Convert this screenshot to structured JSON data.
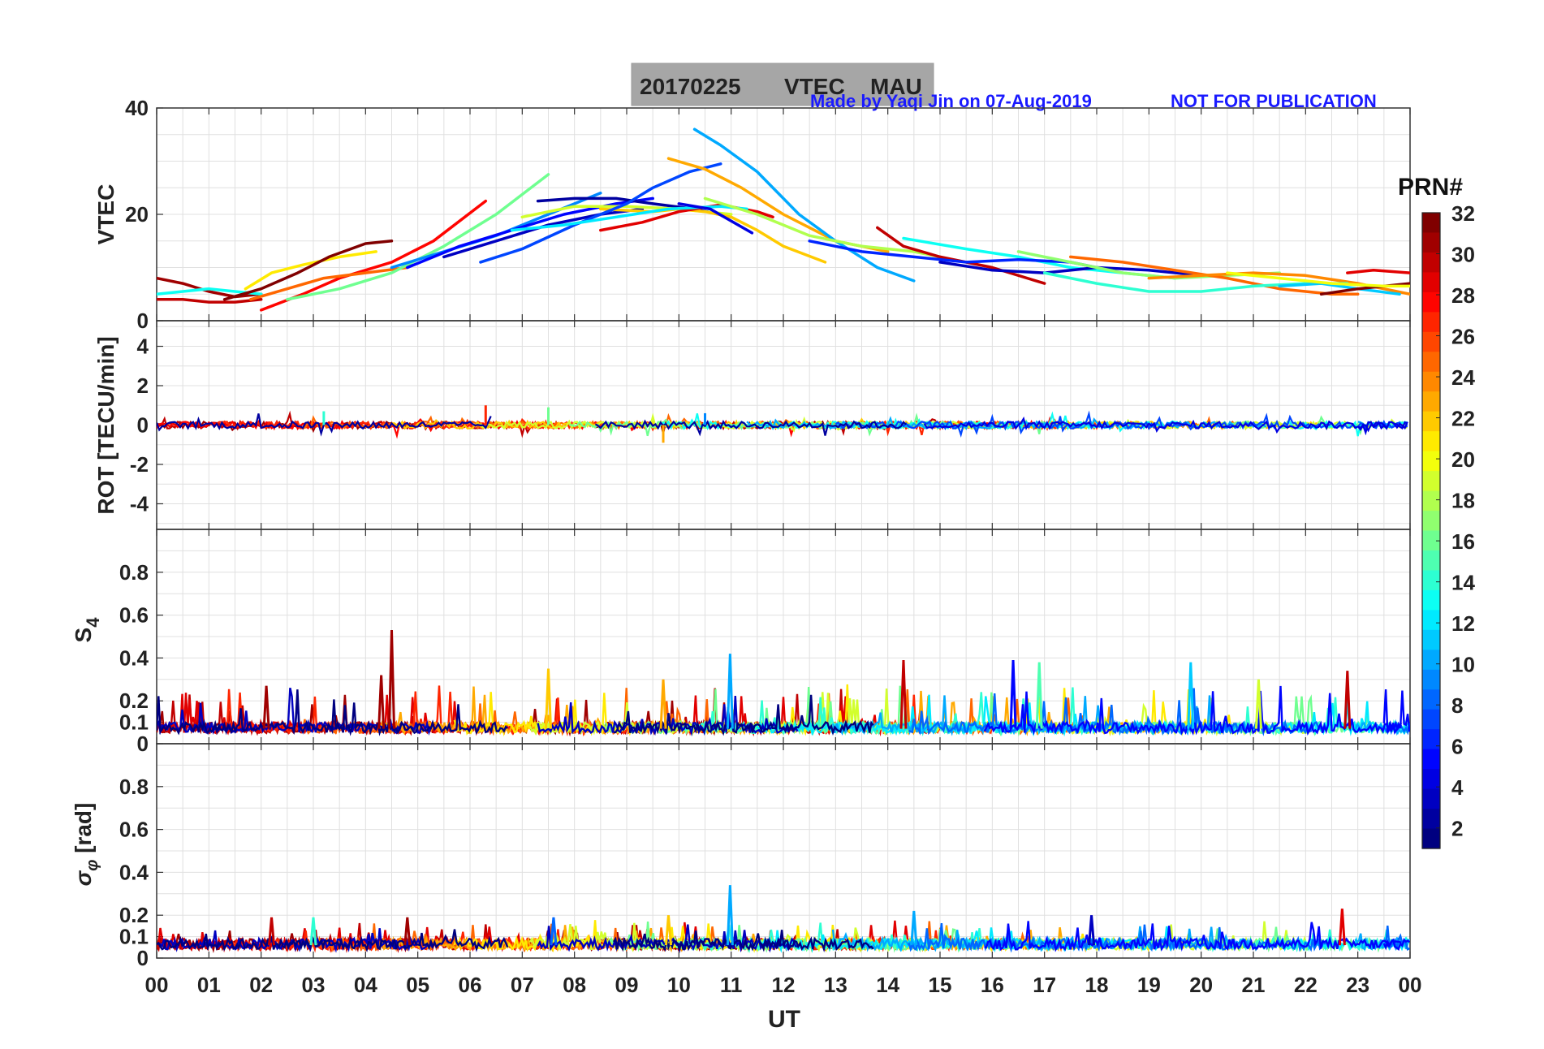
{
  "header": {
    "title_date": "20170225",
    "title_kind": "VTEC",
    "title_station": "MAU",
    "credit": "Made by Yaqi Jin on 07-Aug-2019",
    "notice": "NOT FOR PUBLICATION"
  },
  "colorbar": {
    "title": "PRN#",
    "ticks": [
      "32",
      "30",
      "28",
      "26",
      "24",
      "22",
      "20",
      "18",
      "16",
      "14",
      "12",
      "10",
      "8",
      "6",
      "4",
      "2"
    ],
    "colormap": "jet",
    "range": [
      1,
      32
    ]
  },
  "xaxis": {
    "label": "UT",
    "ticks": [
      "00",
      "01",
      "02",
      "03",
      "04",
      "05",
      "06",
      "07",
      "08",
      "09",
      "10",
      "11",
      "12",
      "13",
      "14",
      "15",
      "16",
      "17",
      "18",
      "19",
      "20",
      "21",
      "22",
      "23",
      "00"
    ]
  },
  "chart_data": [
    {
      "type": "line",
      "title": "20170225 VTEC MAU",
      "ylabel": "VTEC",
      "xlabel": "UT",
      "xlim": [
        0,
        24
      ],
      "ylim": [
        0,
        40
      ],
      "yticks": [
        "0",
        "20",
        "40"
      ],
      "ytick_values": [
        0,
        20,
        40
      ],
      "series": [
        {
          "prn": 31,
          "x": [
            0.0,
            0.5,
            1.0,
            1.5,
            2.0
          ],
          "y": [
            8,
            7,
            5.5,
            4.5,
            5
          ]
        },
        {
          "prn": 30,
          "x": [
            0.0,
            0.5,
            1.0,
            1.5,
            2.0
          ],
          "y": [
            4,
            4,
            3.5,
            3.5,
            4
          ]
        },
        {
          "prn": 13,
          "x": [
            0.0,
            0.5,
            1.0,
            1.5,
            2.0
          ],
          "y": [
            5,
            5.5,
            6,
            5.5,
            5
          ]
        },
        {
          "prn": 21,
          "x": [
            1.7,
            2.2,
            2.8,
            3.5,
            4.2
          ],
          "y": [
            6,
            9,
            10.5,
            12,
            13
          ]
        },
        {
          "prn": 32,
          "x": [
            1.3,
            2.0,
            2.7,
            3.3,
            4.0,
            4.5
          ],
          "y": [
            4,
            6,
            9,
            12,
            14.5,
            15
          ]
        },
        {
          "prn": 28,
          "x": [
            2.0,
            2.8,
            3.5,
            4.5,
            5.3,
            6.3
          ],
          "y": [
            2,
            5,
            8,
            11,
            15,
            22.5
          ]
        },
        {
          "prn": 25,
          "x": [
            1.8,
            2.5,
            3.2,
            4.0,
            4.8
          ],
          "y": [
            4,
            6,
            8,
            9,
            10
          ]
        },
        {
          "prn": 16,
          "x": [
            2.5,
            3.5,
            4.5,
            5.5,
            6.5,
            7.5
          ],
          "y": [
            4,
            6,
            9,
            14,
            20,
            27.5
          ]
        },
        {
          "prn": 9,
          "x": [
            4.5,
            5.5,
            6.5,
            7.5,
            8.5
          ],
          "y": [
            10,
            13,
            16,
            20,
            24
          ]
        },
        {
          "prn": 5,
          "x": [
            4.8,
            5.8,
            6.8,
            7.8,
            8.8,
            9.5
          ],
          "y": [
            10,
            14,
            17,
            20,
            22,
            23
          ]
        },
        {
          "prn": 3,
          "x": [
            5.5,
            6.5,
            7.5,
            8.5,
            9.3
          ],
          "y": [
            12,
            15,
            18,
            20,
            21
          ]
        },
        {
          "prn": 2,
          "x": [
            7.3,
            8.0,
            8.8,
            9.5,
            10.3,
            11.0
          ],
          "y": [
            22.5,
            23,
            23,
            22,
            21,
            19.5
          ]
        },
        {
          "prn": 19,
          "x": [
            7.0,
            8.0,
            9.0,
            10.0,
            11.0
          ],
          "y": [
            19.5,
            21.5,
            21.5,
            21,
            20
          ]
        },
        {
          "prn": 22,
          "x": [
            8.5,
            9.5,
            10.0,
            10.5,
            11.0,
            11.5,
            12.0,
            12.8
          ],
          "y": [
            21,
            20.5,
            21,
            20.5,
            19.5,
            17,
            14,
            11
          ]
        },
        {
          "prn": 7,
          "x": [
            6.2,
            7.0,
            8.0,
            9.0,
            9.5,
            10.2,
            10.8
          ],
          "y": [
            11,
            13.5,
            18,
            22,
            25,
            28,
            29.5
          ]
        },
        {
          "prn": 29,
          "x": [
            8.5,
            9.3,
            10.0,
            10.8,
            11.5,
            11.8
          ],
          "y": [
            17,
            18.5,
            20.5,
            21.8,
            20.5,
            19.5
          ]
        },
        {
          "prn": 12,
          "x": [
            6.8,
            7.8,
            8.8,
            9.8,
            10.8,
            11.3
          ],
          "y": [
            17,
            18,
            19.5,
            21,
            21.5,
            21
          ]
        },
        {
          "prn": 23,
          "x": [
            9.8,
            10.5,
            11.2,
            12.0,
            13.0,
            14.0
          ],
          "y": [
            30.5,
            28.5,
            25,
            20,
            15,
            13
          ]
        },
        {
          "prn": 10,
          "x": [
            10.3,
            10.8,
            11.5,
            12.3,
            13.0,
            13.8,
            14.5
          ],
          "y": [
            36,
            33,
            28,
            20,
            15,
            10,
            7.5
          ]
        },
        {
          "prn": 4,
          "x": [
            10.0,
            10.6,
            11.4
          ],
          "y": [
            22,
            21,
            16.5
          ]
        },
        {
          "prn": 18,
          "x": [
            10.5,
            11.5,
            12.5,
            13.5,
            14.5,
            15.0
          ],
          "y": [
            23,
            20,
            16,
            14,
            13,
            12
          ]
        },
        {
          "prn": 30,
          "x": [
            13.8,
            14.3,
            15.0,
            16.0,
            17.0
          ],
          "y": [
            17.5,
            14,
            12,
            10,
            7
          ]
        },
        {
          "prn": 13,
          "x": [
            14.3,
            15.5,
            16.5,
            17.5,
            18.5,
            19.5
          ],
          "y": [
            15.5,
            13.5,
            12,
            10,
            9,
            8
          ]
        },
        {
          "prn": 6,
          "x": [
            12.5,
            13.5,
            14.5,
            15.5,
            16.5,
            17.5,
            18.0
          ],
          "y": [
            15,
            13,
            12,
            11,
            11.5,
            11,
            10
          ]
        },
        {
          "prn": 3,
          "x": [
            15.0,
            16.0,
            17.0,
            18.0,
            19.0,
            20.0
          ],
          "y": [
            11,
            9.5,
            9,
            10,
            9.5,
            8.5
          ]
        },
        {
          "prn": 17,
          "x": [
            16.5,
            17.5,
            18.5,
            19.5,
            20.5,
            21.5
          ],
          "y": [
            13,
            11,
            9,
            8,
            8.5,
            9
          ]
        },
        {
          "prn": 25,
          "x": [
            17.5,
            18.5,
            19.5,
            20.5,
            21.5,
            22.5,
            23.0
          ],
          "y": [
            12,
            11,
            9.5,
            8,
            6,
            5,
            5
          ]
        },
        {
          "prn": 24,
          "x": [
            19.0,
            20.0,
            21.0,
            22.0,
            23.0,
            24.0
          ],
          "y": [
            8,
            8.5,
            9,
            8.5,
            7,
            5
          ]
        },
        {
          "prn": 14,
          "x": [
            17.0,
            18.0,
            19.0,
            20.0,
            21.0,
            22.0,
            22.8
          ],
          "y": [
            9,
            7,
            5.5,
            5.5,
            6.5,
            7,
            7
          ]
        },
        {
          "prn": 11,
          "x": [
            21.5,
            22.3,
            23.0,
            23.8
          ],
          "y": [
            6.5,
            7,
            6,
            5
          ]
        },
        {
          "prn": 32,
          "x": [
            22.3,
            23.0,
            24.0
          ],
          "y": [
            5,
            6,
            7
          ]
        },
        {
          "prn": 29,
          "x": [
            22.8,
            23.3,
            24.0
          ],
          "y": [
            9,
            9.5,
            9
          ]
        },
        {
          "prn": 20,
          "x": [
            20.5,
            21.5,
            22.5,
            23.5,
            24.0
          ],
          "y": [
            9,
            8,
            7,
            6.5,
            6.5
          ]
        }
      ]
    },
    {
      "type": "line",
      "ylabel": "ROT [TECU/min]",
      "xlabel": "UT",
      "xlim": [
        0,
        24
      ],
      "ylim": [
        -5.3,
        5.3
      ],
      "yticks": [
        "-4",
        "-2",
        "0",
        "2",
        "4"
      ],
      "ytick_values": [
        -4,
        -2,
        0,
        2,
        4
      ],
      "description_values": "noisy series mostly within -1 to 1 TECU/min",
      "spikes": [
        {
          "x": 6.3,
          "y": 1.0,
          "prn": 27
        },
        {
          "x": 7.5,
          "y": 0.9,
          "prn": 16
        },
        {
          "x": 9.7,
          "y": -0.9,
          "prn": 23
        },
        {
          "x": 3.2,
          "y": 0.7,
          "prn": 14
        },
        {
          "x": 10.5,
          "y": 0.6,
          "prn": 9
        }
      ]
    },
    {
      "type": "line",
      "ylabel": "S4",
      "xlabel": "UT",
      "xlim": [
        0,
        24
      ],
      "ylim": [
        0,
        1
      ],
      "yticks": [
        "0",
        "0.1",
        "0.2",
        "0.4",
        "0.6",
        "0.8"
      ],
      "ytick_values": [
        0,
        0.1,
        0.2,
        0.4,
        0.6,
        0.8
      ],
      "baseline": 0.07,
      "spikes": [
        {
          "x": 4.5,
          "y": 0.53,
          "prn": 31
        },
        {
          "x": 4.3,
          "y": 0.32,
          "prn": 31
        },
        {
          "x": 10.98,
          "y": 0.42,
          "prn": 10
        },
        {
          "x": 14.3,
          "y": 0.39,
          "prn": 30
        },
        {
          "x": 16.4,
          "y": 0.39,
          "prn": 5
        },
        {
          "x": 16.9,
          "y": 0.38,
          "prn": 15
        },
        {
          "x": 19.8,
          "y": 0.38,
          "prn": 11
        },
        {
          "x": 22.8,
          "y": 0.34,
          "prn": 30
        },
        {
          "x": 7.5,
          "y": 0.35,
          "prn": 22
        },
        {
          "x": 9.7,
          "y": 0.3,
          "prn": 23
        },
        {
          "x": 2.1,
          "y": 0.27,
          "prn": 31
        },
        {
          "x": 21.1,
          "y": 0.3,
          "prn": 19
        }
      ]
    },
    {
      "type": "line",
      "ylabel": "σφ [rad]",
      "xlabel": "UT",
      "xlim": [
        0,
        24
      ],
      "ylim": [
        0,
        1
      ],
      "yticks": [
        "0",
        "0.1",
        "0.2",
        "0.4",
        "0.6",
        "0.8"
      ],
      "ytick_values": [
        0,
        0.1,
        0.2,
        0.4,
        0.6,
        0.8
      ],
      "baseline": 0.06,
      "spikes": [
        {
          "x": 10.98,
          "y": 0.34,
          "prn": 10
        },
        {
          "x": 14.5,
          "y": 0.22,
          "prn": 10
        },
        {
          "x": 22.7,
          "y": 0.23,
          "prn": 29
        },
        {
          "x": 17.9,
          "y": 0.2,
          "prn": 3
        },
        {
          "x": 4.8,
          "y": 0.19,
          "prn": 31
        },
        {
          "x": 2.2,
          "y": 0.19,
          "prn": 30
        },
        {
          "x": 3.0,
          "y": 0.19,
          "prn": 14
        },
        {
          "x": 7.6,
          "y": 0.19,
          "prn": 8
        },
        {
          "x": 9.8,
          "y": 0.2,
          "prn": 22
        }
      ]
    }
  ]
}
